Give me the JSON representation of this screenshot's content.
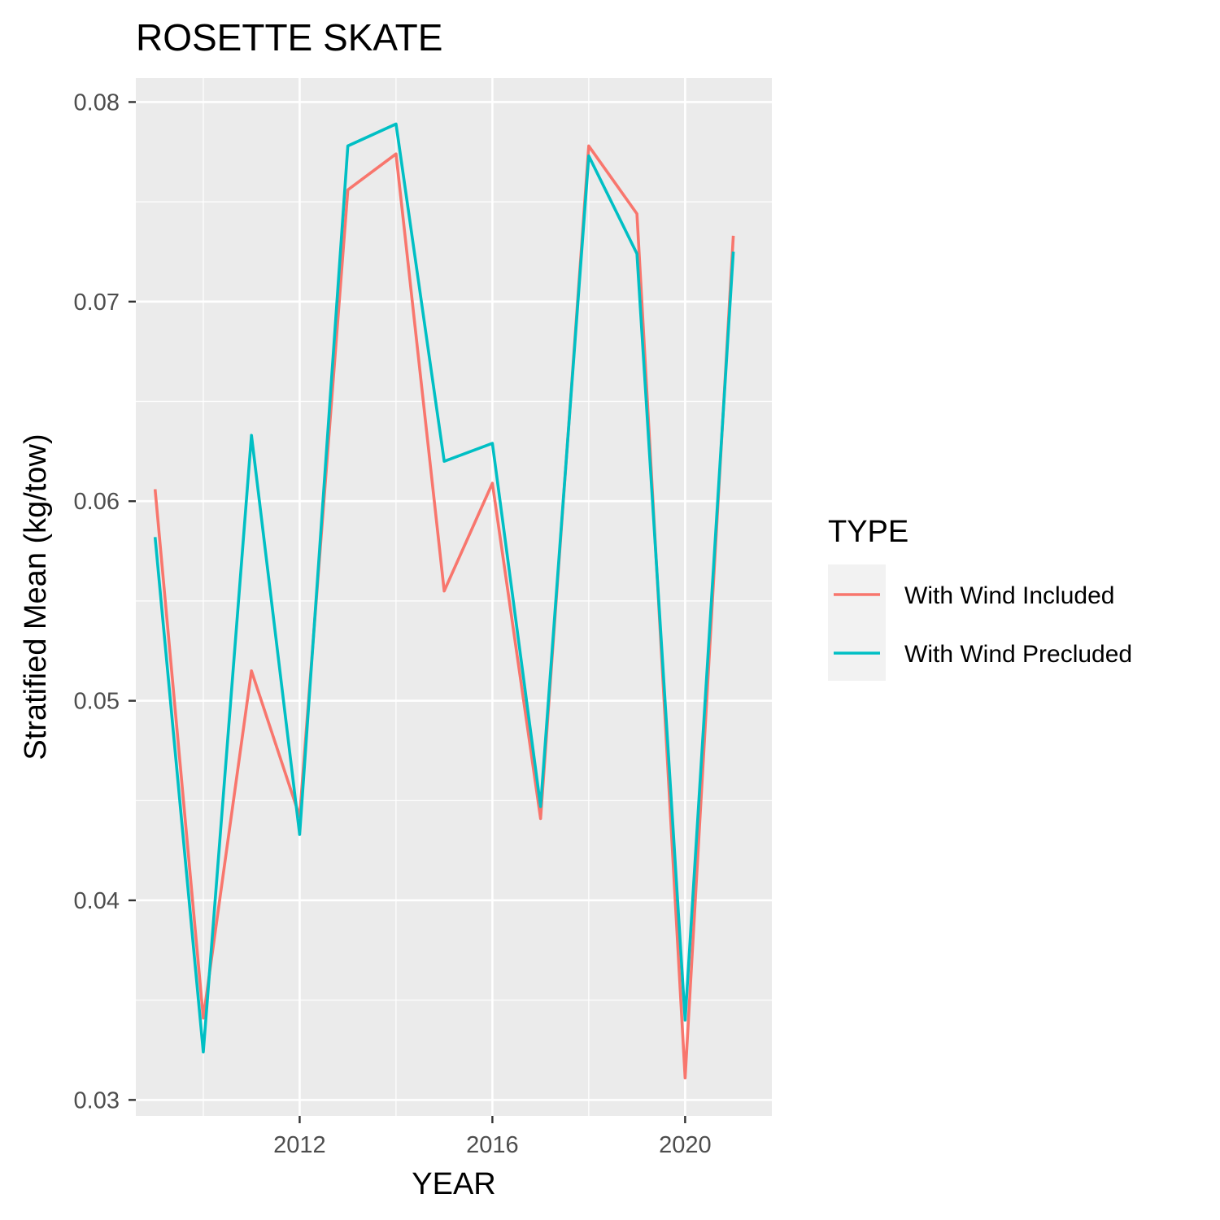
{
  "chart_data": {
    "type": "line",
    "title": "ROSETTE SKATE",
    "xlabel": "YEAR",
    "ylabel": "Stratified Mean (kg/tow)",
    "xlim": [
      2008.6,
      2021.8
    ],
    "ylim": [
      0.0292,
      0.0812
    ],
    "x_ticks": [
      2012,
      2016,
      2020
    ],
    "x_tick_labels": [
      "2012",
      "2016",
      "2020"
    ],
    "x_minor_ticks": [
      2010,
      2014,
      2018
    ],
    "y_ticks": [
      0.03,
      0.04,
      0.05,
      0.06,
      0.07,
      0.08
    ],
    "y_tick_labels": [
      "0.03",
      "0.04",
      "0.05",
      "0.06",
      "0.07",
      "0.08"
    ],
    "y_minor_ticks": [
      0.035,
      0.045,
      0.055,
      0.065,
      0.075
    ],
    "grid": true,
    "legend": {
      "title": "TYPE",
      "position": "right"
    },
    "x": [
      2009,
      2010,
      2011,
      2012,
      2013,
      2014,
      2015,
      2016,
      2017,
      2018,
      2019,
      2020,
      2021
    ],
    "series": [
      {
        "name": "With Wind Included",
        "color": "#F8766D",
        "values": [
          0.0606,
          0.0341,
          0.0515,
          0.0442,
          0.0756,
          0.0774,
          0.0555,
          0.0609,
          0.0441,
          0.0778,
          0.0744,
          0.0311,
          0.0733
        ]
      },
      {
        "name": "With Wind Precluded",
        "color": "#00BFC4",
        "values": [
          0.0582,
          0.0324,
          0.0633,
          0.0433,
          0.0778,
          0.0789,
          0.062,
          0.0629,
          0.0447,
          0.0773,
          0.0724,
          0.034,
          0.0725
        ]
      }
    ]
  }
}
